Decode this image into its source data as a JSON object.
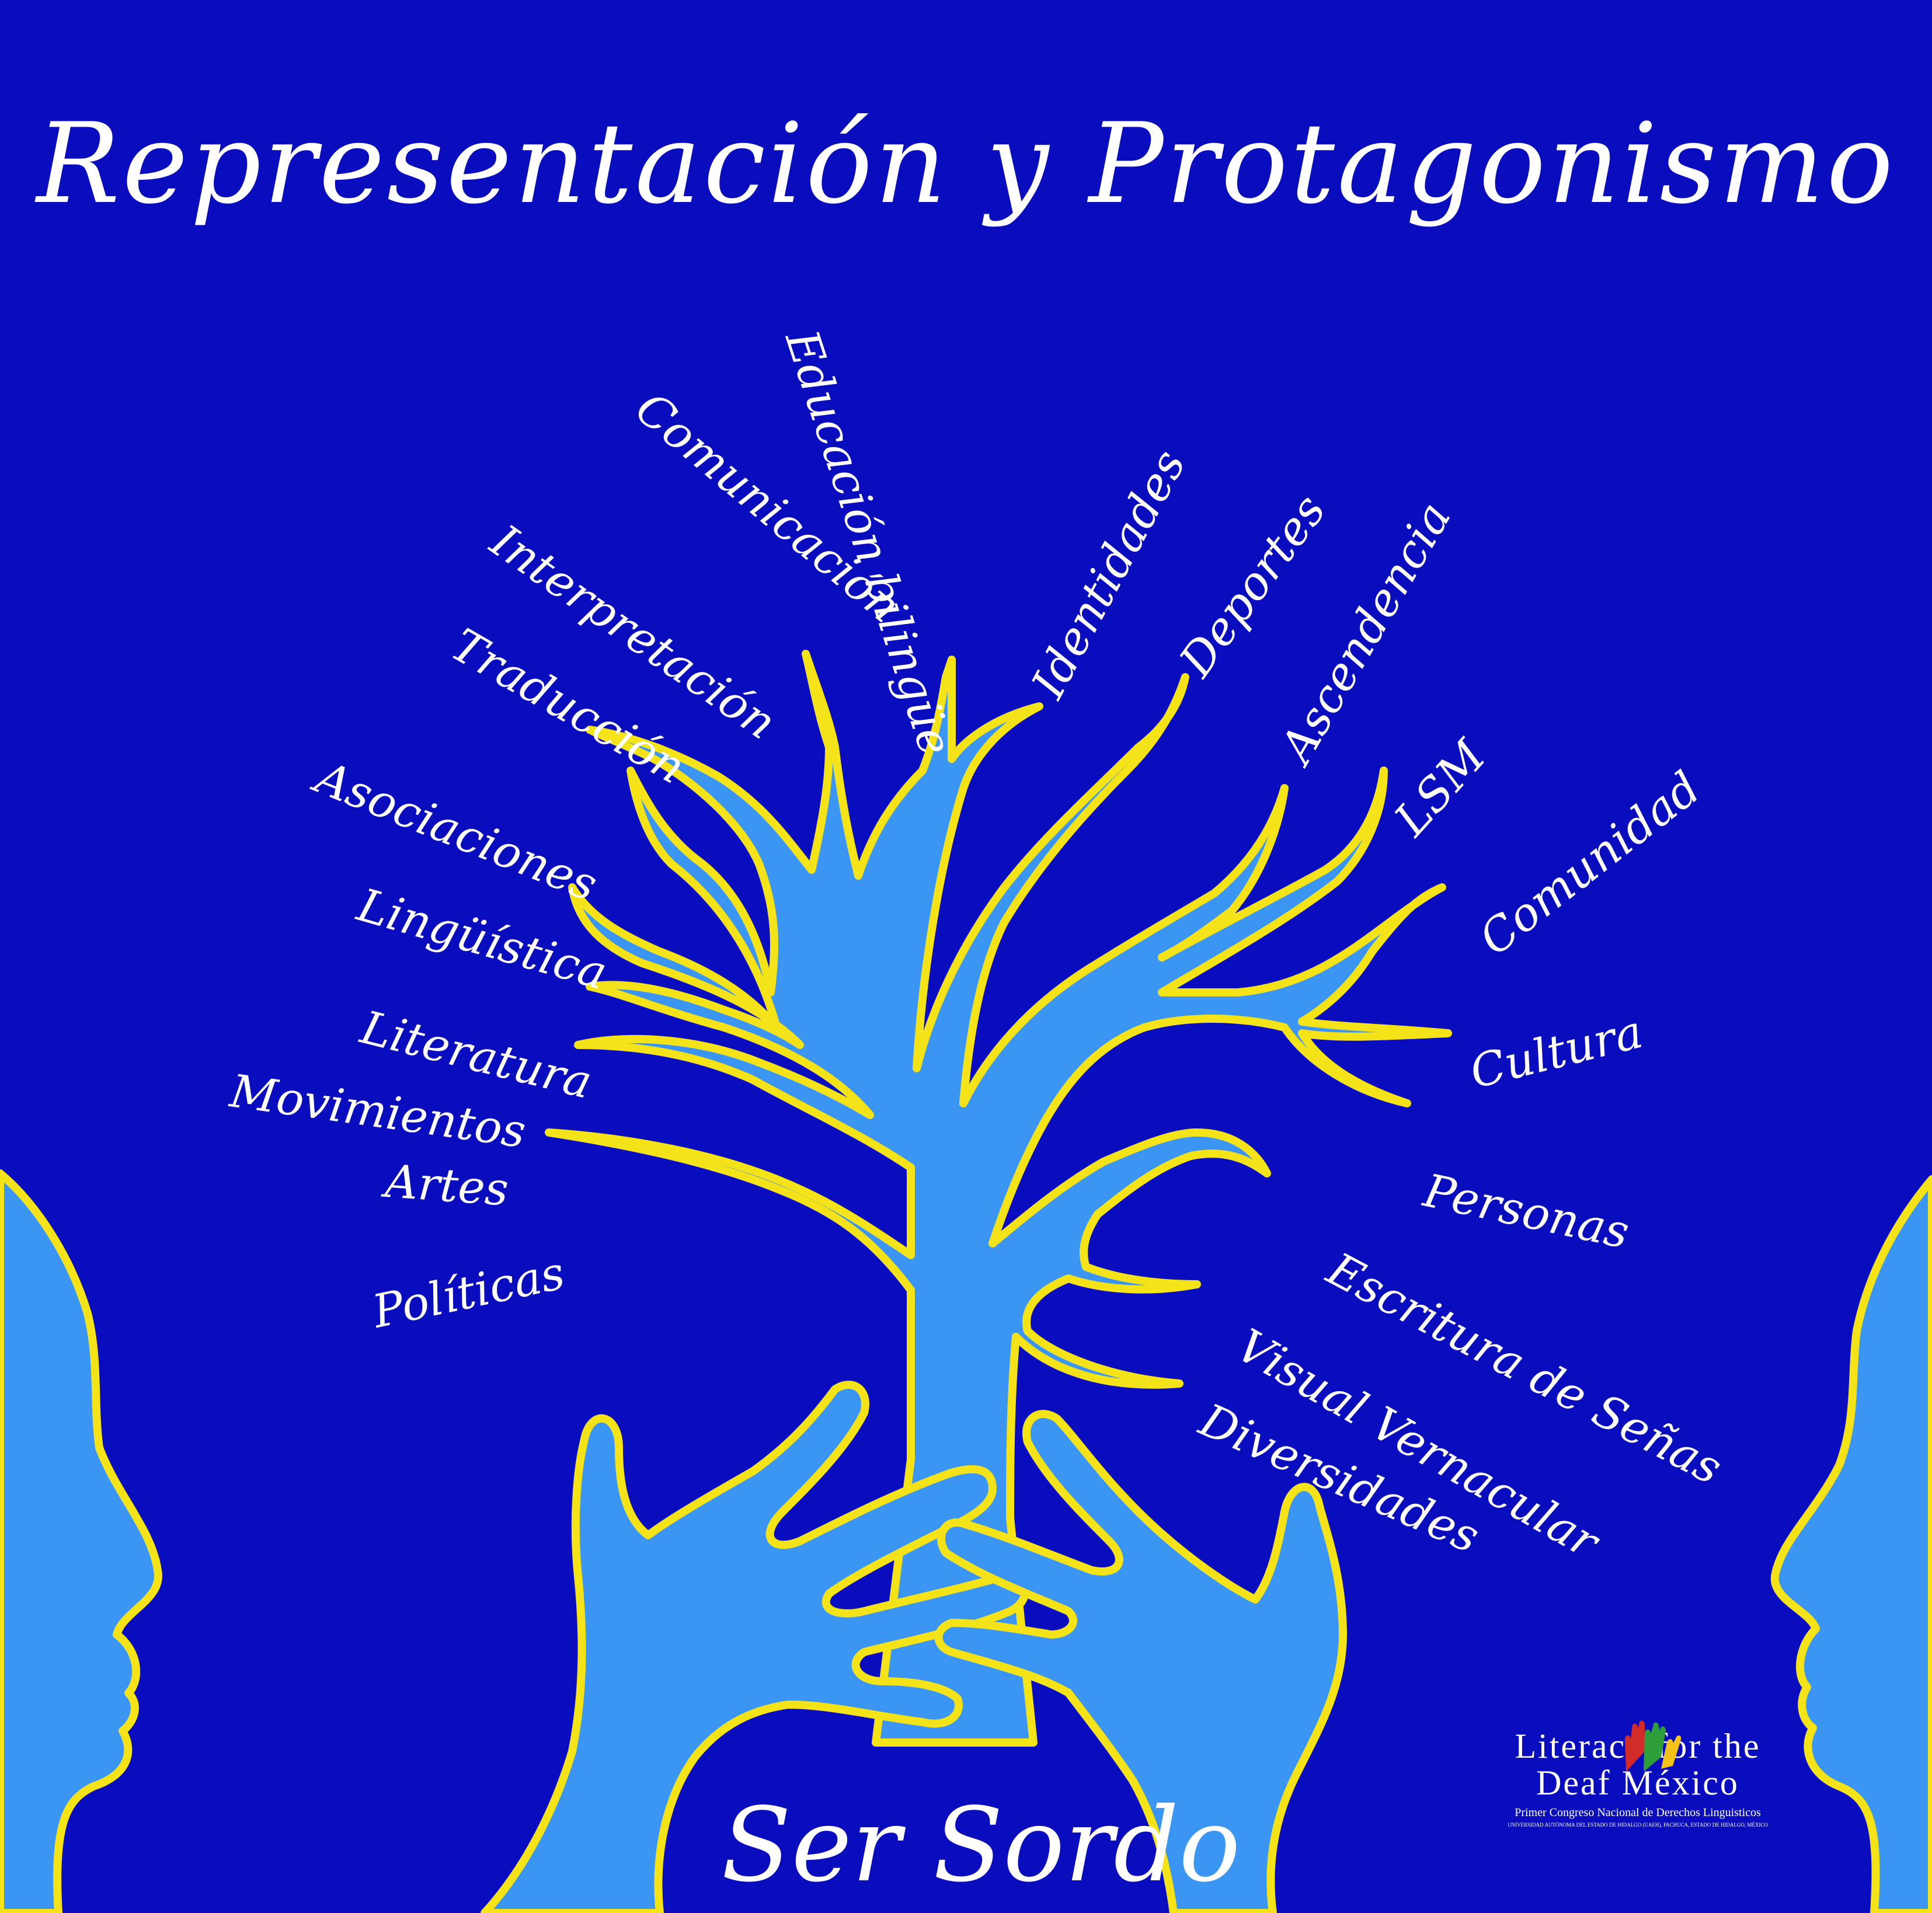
{
  "title": "Representación y Protagonismo",
  "bottom_title": "Ser Sordo",
  "colors": {
    "background": "#0a0dbe",
    "fill": "#3b95f2",
    "outline": "#f5e31a",
    "text": "#ffffff"
  },
  "branches_left": [
    "Comunicación",
    "Interpretación",
    "Traducción",
    "Asociaciones",
    "Lingüística",
    "Literatura",
    "Movimientos",
    "Artes",
    "Políticas"
  ],
  "branch_center": "Educación bilingüe",
  "branches_right": [
    "Identidades",
    "Deportes",
    "Ascendencia",
    "LSM",
    "Comunidad",
    "Cultura",
    "Personas",
    "Escritura de Señas",
    "Visual Vernacular",
    "Diversidades"
  ],
  "logo": {
    "line1": "Literacy for the",
    "line2": "Deaf México",
    "line3": "Primer Congreso Nacional de Derechos Linguisticos",
    "line4": "UNIVERSIDAD AUTÓNOMA DEL ESTADO DE HIDALGO (UAEH), PACHUCA, ESTADO DE HIDALGO, MÉXICO"
  }
}
